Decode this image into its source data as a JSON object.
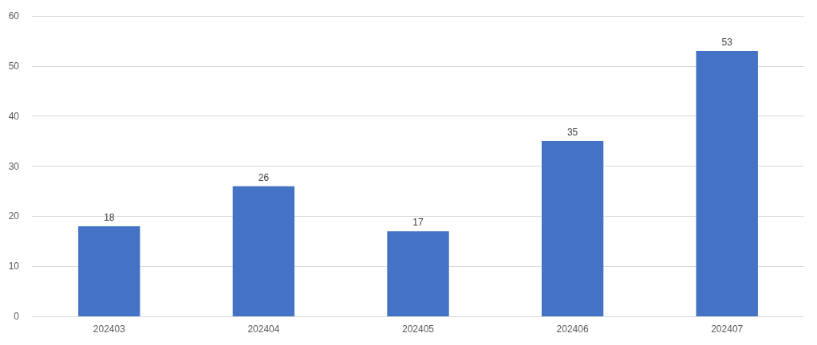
{
  "chart_data": {
    "type": "bar",
    "categories": [
      "202403",
      "202404",
      "202405",
      "202406",
      "202407"
    ],
    "values": [
      18,
      26,
      17,
      35,
      53
    ],
    "color": "#4472c4",
    "ylim": [
      0,
      60
    ],
    "yticks": [
      0,
      10,
      20,
      30,
      40,
      50,
      60
    ],
    "grid": "y",
    "data_labels": true
  }
}
